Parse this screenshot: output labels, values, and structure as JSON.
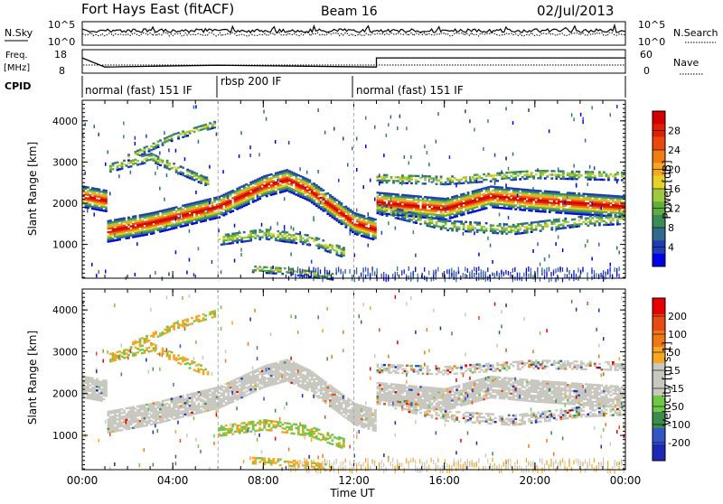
{
  "header": {
    "radar": "Fort Hays East (fitACF)",
    "beam": "Beam 16",
    "date": "02/Jul/2013"
  },
  "panels": {
    "nsky": {
      "label": "N.Sky",
      "ticks": [
        "10^5",
        "10^0"
      ],
      "right_label": "N.Search",
      "right_ticks": [
        "10^5",
        "10^0"
      ]
    },
    "freq": {
      "label": "Freq.",
      "unit": "[MHz]",
      "ticks": [
        "18",
        "8"
      ],
      "right_label": "Nave",
      "right_ticks": [
        "60",
        "0"
      ],
      "hours": [
        0,
        1,
        1,
        6,
        6,
        13,
        13,
        24
      ],
      "values_mhz": [
        14.5,
        10.6,
        10.6,
        11.4,
        11.4,
        10.6,
        14.5,
        14.5
      ]
    },
    "cpid": {
      "label": "CPID",
      "segments": [
        {
          "start_h": 0,
          "label": "normal (fast) 151 IF"
        },
        {
          "start_h": 6,
          "label": "rbsp 200 IF"
        },
        {
          "start_h": 12,
          "label": "normal (fast) 151 IF"
        }
      ]
    }
  },
  "chart_data": [
    {
      "type": "heatmap",
      "name": "power",
      "ylabel": "Slant Range [km]",
      "yticks": [
        1000,
        2000,
        3000,
        4000
      ],
      "ylim": [
        180,
        4500
      ],
      "xlim": [
        0,
        24
      ],
      "colorbar": {
        "label": "Power [dB]",
        "ticks": [
          "28",
          "24",
          "20",
          "16",
          "12",
          "8",
          "4"
        ],
        "colors": [
          "#0000e6",
          "#1f3cb4",
          "#2e6b8c",
          "#3c8c5a",
          "#5fae3c",
          "#a0c83c",
          "#e6d02a",
          "#f5a623",
          "#f07d14",
          "#e84a0c",
          "#e01e00",
          "#d40000"
        ]
      }
    },
    {
      "type": "heatmap",
      "name": "velocity",
      "ylabel": "Slant Range [km]",
      "yticks": [
        1000,
        2000,
        3000,
        4000
      ],
      "ylim": [
        180,
        4500
      ],
      "xlim": [
        0,
        24
      ],
      "xticks": [
        "00:00",
        "04:00",
        "08:00",
        "12:00",
        "16:00",
        "20:00",
        "00:00"
      ],
      "xlabel": "Time UT",
      "colorbar": {
        "label": "Velocity [m s-1]",
        "ticks": [
          "200",
          "100",
          "50",
          "15",
          "-15",
          "-50",
          "-100",
          "-200"
        ],
        "colors": [
          "#1e28b4",
          "#3255c8",
          "#3c8c50",
          "#6ec846",
          "#c8c8c0",
          "#c8c8c0",
          "#f5a623",
          "#f07814",
          "#e64b14",
          "#e60000"
        ]
      }
    }
  ]
}
